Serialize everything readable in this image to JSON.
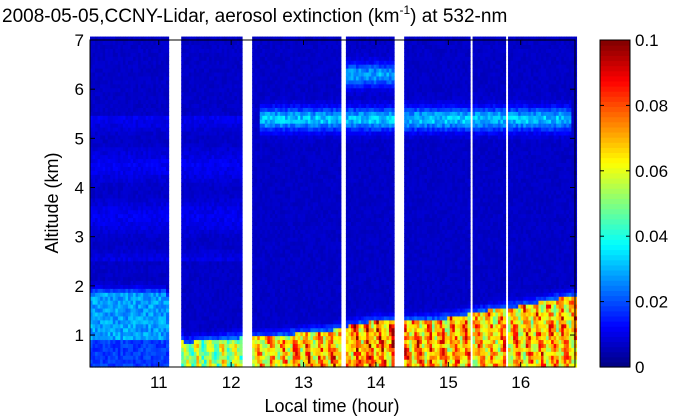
{
  "chart_data": {
    "type": "heatmap",
    "title_pre": "2008-05-05,CCNY-Lidar, aerosol extinction (km",
    "title_sup": "-1",
    "title_post": ") at 532-nm",
    "xlabel": "Local time (hour)",
    "ylabel": "Altitude (km)",
    "xlim": [
      10.05,
      16.75
    ],
    "ylim": [
      0.35,
      7.0
    ],
    "x_ticks": [
      "11",
      "12",
      "13",
      "14",
      "15",
      "16"
    ],
    "y_ticks": [
      "1",
      "2",
      "3",
      "4",
      "5",
      "6",
      "7"
    ],
    "colorbar": {
      "range": [
        0,
        0.1
      ],
      "ticks": [
        "0",
        "0.02",
        "0.04",
        "0.06",
        "0.08",
        "0.1"
      ],
      "colormap": "jet"
    },
    "data_gaps_hours": [
      [
        11.15,
        11.3
      ],
      [
        12.15,
        12.3
      ],
      [
        13.5,
        13.58
      ],
      [
        14.25,
        14.4
      ],
      [
        15.3,
        15.33
      ],
      [
        15.8,
        15.82
      ]
    ],
    "boundary_layer": {
      "times": [
        10.1,
        11.1,
        11.35,
        12.1,
        12.35,
        13.0,
        13.4,
        13.65,
        14.0,
        14.5,
        15.0,
        15.5,
        16.0,
        16.7
      ],
      "top_km": [
        1.85,
        1.85,
        0.85,
        0.95,
        0.95,
        1.05,
        1.1,
        1.2,
        1.3,
        1.3,
        1.35,
        1.5,
        1.6,
        1.8
      ],
      "peak_extinction": [
        0.03,
        0.03,
        0.06,
        0.065,
        0.075,
        0.08,
        0.082,
        0.085,
        0.088,
        0.082,
        0.082,
        0.08,
        0.08,
        0.08
      ]
    },
    "aerosol_layers": [
      {
        "altitude_km": 5.4,
        "time_range": [
          12.4,
          16.7
        ],
        "extinction": 0.025
      },
      {
        "altitude_km": 6.3,
        "time_range": [
          13.6,
          14.25
        ],
        "extinction": 0.022
      }
    ],
    "background_extinction": 0.007
  }
}
